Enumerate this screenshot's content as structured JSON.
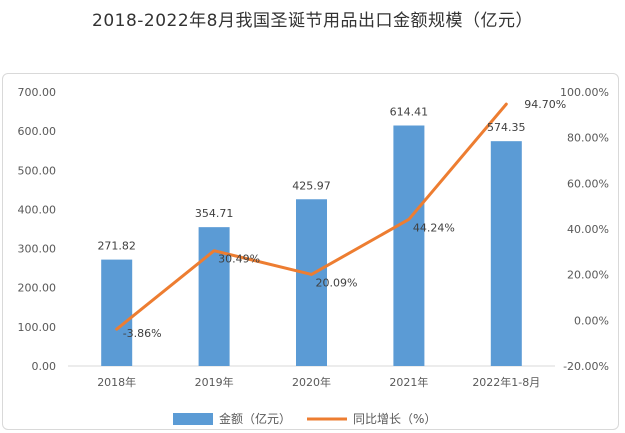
{
  "chart_data": {
    "type": "bar",
    "title": "2018-2022年8月我国圣诞节用品出口金额规模（亿元）",
    "categories": [
      "2018年",
      "2019年",
      "2020年",
      "2021年",
      "2022年1-8月"
    ],
    "series": [
      {
        "name": "金额（亿元）",
        "type": "bar",
        "axis": "left",
        "color": "#5b9bd5",
        "values": [
          271.82,
          354.71,
          425.97,
          614.41,
          574.35
        ],
        "labels": [
          "271.82",
          "354.71",
          "425.97",
          "614.41",
          "574.35"
        ]
      },
      {
        "name": "同比增长（%）",
        "type": "line",
        "axis": "right",
        "color": "#ed7d31",
        "values": [
          -3.86,
          30.49,
          20.09,
          44.24,
          94.7
        ],
        "labels": [
          "-3.86%",
          "30.49%",
          "20.09%",
          "44.24%",
          "94.70%"
        ]
      }
    ],
    "y_left": {
      "ylim": [
        0,
        700
      ],
      "ticks": [
        "0.00",
        "100.00",
        "200.00",
        "300.00",
        "400.00",
        "500.00",
        "600.00",
        "700.00"
      ]
    },
    "y_right": {
      "ylim": [
        -20,
        100
      ],
      "ticks": [
        "-20.00%",
        "0.00%",
        "20.00%",
        "40.00%",
        "60.00%",
        "80.00%",
        "100.00%"
      ]
    },
    "legend_position": "bottom",
    "grid": false
  }
}
